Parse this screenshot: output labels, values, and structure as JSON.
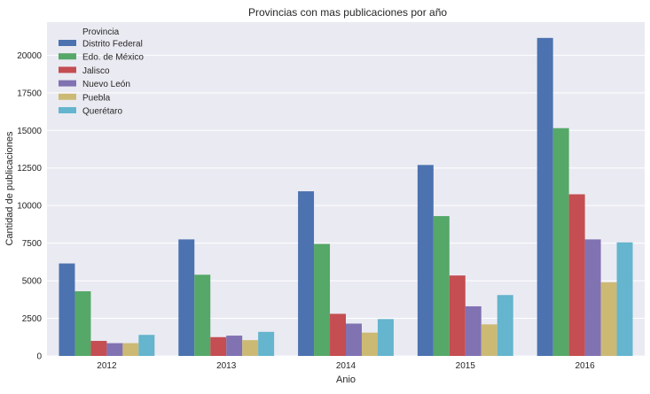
{
  "chart_data": {
    "type": "bar",
    "title": "Provincias con mas publicaciones por año",
    "xlabel": "Anio",
    "ylabel": "Cantidad de publicaciones",
    "categories": [
      "2012",
      "2013",
      "2014",
      "2015",
      "2016"
    ],
    "ylim": [
      0,
      22200
    ],
    "yticks": [
      0,
      2500,
      5000,
      7500,
      10000,
      12500,
      15000,
      17500,
      20000
    ],
    "grid": true,
    "legend": {
      "title": "Provincia",
      "placement": "top-left"
    },
    "series": [
      {
        "name": "Distrito Federal",
        "color": "#4c72b0",
        "values": [
          6150,
          7750,
          10950,
          12700,
          21150
        ]
      },
      {
        "name": "Edo. de México",
        "color": "#55a868",
        "values": [
          4300,
          5400,
          7450,
          9300,
          15150
        ]
      },
      {
        "name": "Jalisco",
        "color": "#c44e52",
        "values": [
          1000,
          1250,
          2800,
          5350,
          10750
        ]
      },
      {
        "name": "Nuevo León",
        "color": "#8172b2",
        "values": [
          850,
          1350,
          2150,
          3300,
          7750
        ]
      },
      {
        "name": "Puebla",
        "color": "#ccb974",
        "values": [
          850,
          1050,
          1550,
          2100,
          4900
        ]
      },
      {
        "name": "Querétaro",
        "color": "#64b5cd",
        "values": [
          1400,
          1600,
          2450,
          4050,
          7550
        ]
      }
    ]
  }
}
